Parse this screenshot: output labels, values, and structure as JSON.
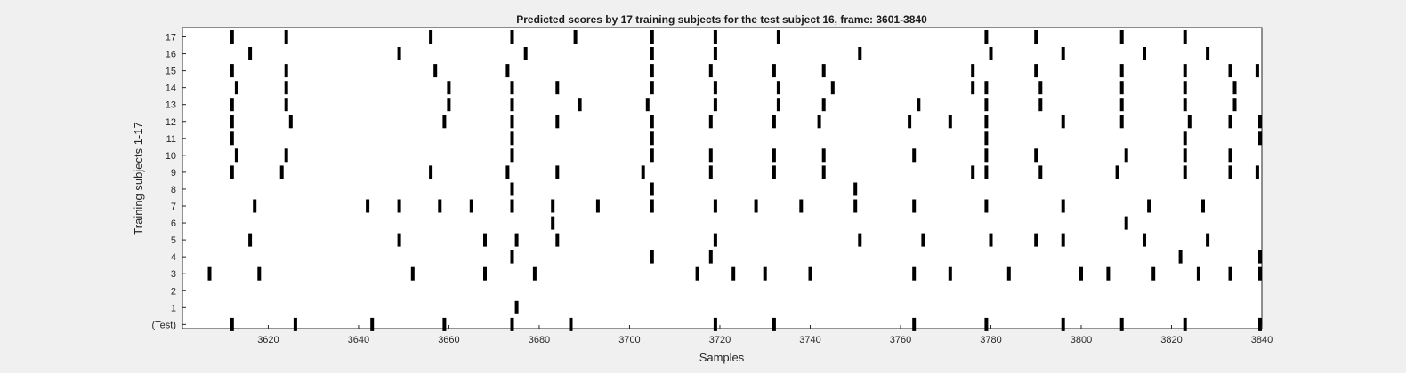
{
  "chart_data": {
    "type": "raster",
    "title": "Predicted scores by 17 training subjects for the test subject 16, frame: 3601-3840",
    "xlabel": "Samples",
    "ylabel": "Training subjects 1-17",
    "xlim": [
      3601,
      3840
    ],
    "xticks": [
      3620,
      3640,
      3660,
      3680,
      3700,
      3720,
      3740,
      3760,
      3780,
      3800,
      3820,
      3840
    ],
    "row_labels": [
      "(Test)",
      "1",
      "2",
      "3",
      "4",
      "5",
      "6",
      "7",
      "8",
      "9",
      "10",
      "11",
      "12",
      "13",
      "14",
      "15",
      "16",
      "17"
    ],
    "grid": false,
    "rows": [
      {
        "label": "(Test)",
        "events": [
          3612,
          3626,
          3643,
          3659,
          3674,
          3687,
          3719,
          3732,
          3763,
          3779,
          3796,
          3809,
          3823,
          3840
        ]
      },
      {
        "label": "1",
        "events": [
          3675
        ]
      },
      {
        "label": "2",
        "events": []
      },
      {
        "label": "3",
        "events": [
          3607,
          3618,
          3652,
          3668,
          3679,
          3715,
          3723,
          3730,
          3740,
          3763,
          3771,
          3784,
          3800,
          3806,
          3816,
          3826,
          3833,
          3840
        ]
      },
      {
        "label": "4",
        "events": [
          3674,
          3705,
          3718,
          3822,
          3840
        ]
      },
      {
        "label": "5",
        "events": [
          3616,
          3649,
          3668,
          3675,
          3684,
          3719,
          3751,
          3765,
          3780,
          3790,
          3796,
          3814,
          3828
        ]
      },
      {
        "label": "6",
        "events": [
          3683,
          3810
        ]
      },
      {
        "label": "7",
        "events": [
          3617,
          3642,
          3649,
          3658,
          3665,
          3674,
          3683,
          3693,
          3705,
          3719,
          3728,
          3738,
          3750,
          3763,
          3779,
          3796,
          3815,
          3827
        ]
      },
      {
        "label": "8",
        "events": [
          3674,
          3705,
          3750
        ]
      },
      {
        "label": "9",
        "events": [
          3612,
          3623,
          3656,
          3673,
          3684,
          3703,
          3718,
          3732,
          3743,
          3776,
          3779,
          3791,
          3808,
          3823,
          3833,
          3839
        ]
      },
      {
        "label": "10",
        "events": [
          3613,
          3624,
          3674,
          3705,
          3718,
          3732,
          3743,
          3763,
          3779,
          3790,
          3810,
          3823,
          3833
        ]
      },
      {
        "label": "11",
        "events": [
          3612,
          3674,
          3705,
          3779,
          3823,
          3840
        ]
      },
      {
        "label": "12",
        "events": [
          3612,
          3625,
          3659,
          3674,
          3684,
          3705,
          3718,
          3732,
          3742,
          3762,
          3771,
          3779,
          3796,
          3809,
          3824,
          3833,
          3840
        ]
      },
      {
        "label": "13",
        "events": [
          3612,
          3624,
          3660,
          3674,
          3689,
          3704,
          3719,
          3733,
          3743,
          3764,
          3779,
          3791,
          3809,
          3823,
          3834
        ]
      },
      {
        "label": "14",
        "events": [
          3613,
          3624,
          3660,
          3674,
          3684,
          3705,
          3719,
          3733,
          3745,
          3776,
          3779,
          3791,
          3809,
          3823,
          3834
        ]
      },
      {
        "label": "15",
        "events": [
          3612,
          3624,
          3657,
          3673,
          3705,
          3718,
          3732,
          3743,
          3776,
          3790,
          3809,
          3823,
          3833,
          3839
        ]
      },
      {
        "label": "16",
        "events": [
          3616,
          3649,
          3677,
          3705,
          3719,
          3751,
          3780,
          3796,
          3814,
          3828
        ]
      },
      {
        "label": "17",
        "events": [
          3612,
          3624,
          3656,
          3674,
          3688,
          3705,
          3719,
          3733,
          3779,
          3790,
          3809,
          3823
        ]
      }
    ],
    "colors": {
      "background": "#f0f0f0",
      "plot": "#ffffff",
      "mark": "#000000",
      "axis": "#262626"
    }
  }
}
